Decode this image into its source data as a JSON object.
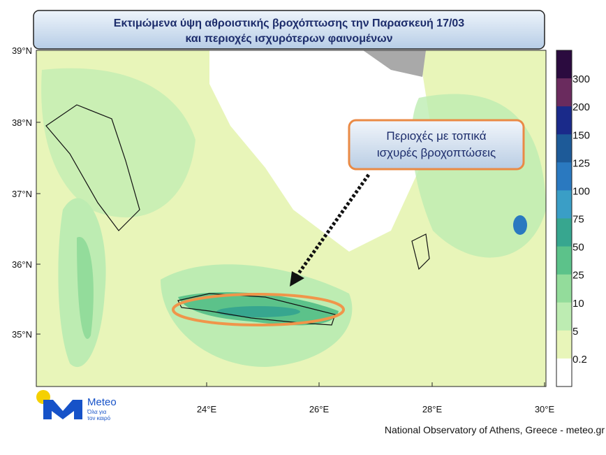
{
  "header": {
    "title_line1": "Εκτιμώμενα ύψη αθροιστικής βροχόπτωσης την Παρασκευή 17/03",
    "title_line2": "και περιοχές ισχυρότερων φαινομένων"
  },
  "callout": {
    "line1": "Περιοχές με τοπικά",
    "line2": "ισχυρές βροχοπτώσεις"
  },
  "map": {
    "lat_labels": [
      "39°N",
      "38°N",
      "37°N",
      "36°N",
      "35°N"
    ],
    "lon_labels": [
      "24°E",
      "26°E",
      "28°E",
      "30°E"
    ]
  },
  "colorbar": {
    "colors": [
      "#2b0b3f",
      "#6a2b5e",
      "#1a2a8a",
      "#1d5a98",
      "#2a79c0",
      "#3a9ec6",
      "#37a68f",
      "#5cc28a",
      "#93dc9b",
      "#bdecb2",
      "#e8f5b9",
      "#ffffff"
    ],
    "labels": [
      300,
      200,
      150,
      125,
      100,
      75,
      50,
      25,
      10,
      5,
      0.2
    ]
  },
  "logo": {
    "name": "Meteo",
    "tagline1": "Όλα για",
    "tagline2": "τον καιρό"
  },
  "footer": "National Observatory of Athens, Greece - meteo.gr"
}
